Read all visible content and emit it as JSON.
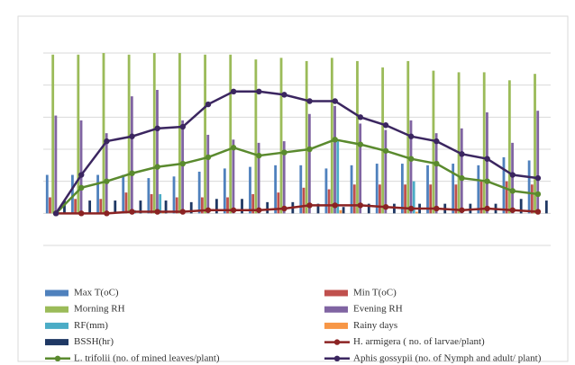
{
  "chart_data": {
    "type": "bar",
    "categories": [
      null,
      null,
      null,
      null,
      null,
      null,
      null,
      null,
      null,
      null,
      null,
      null,
      null,
      null,
      null,
      null,
      null,
      null,
      null,
      null
    ],
    "ylim": [
      -20,
      100
    ],
    "yticks": [
      -20,
      0,
      20,
      40,
      60,
      80,
      100
    ],
    "grid": true,
    "series": [
      {
        "name": "Max T(oC)",
        "color": "#4f81bd",
        "type": "bar",
        "values": [
          24,
          24,
          24,
          24,
          22,
          23,
          26,
          28,
          29,
          30,
          30,
          28,
          30,
          31,
          31,
          30,
          31,
          30,
          35,
          33
        ]
      },
      {
        "name": "Min T(oC)",
        "color": "#c0504d",
        "type": "bar",
        "values": [
          10,
          9,
          9,
          13,
          12,
          10,
          10,
          10,
          12,
          13,
          16,
          15,
          18,
          18,
          18,
          18,
          18,
          20,
          20,
          18
        ]
      },
      {
        "name": "Morning RH",
        "color": "#9bbb59",
        "type": "bar",
        "values": [
          99,
          99,
          100,
          99,
          100,
          100,
          99,
          99,
          96,
          97,
          95,
          97,
          95,
          91,
          95,
          89,
          88,
          88,
          83,
          87
        ]
      },
      {
        "name": "Evening RH",
        "color": "#8064a2",
        "type": "bar",
        "values": [
          61,
          58,
          50,
          73,
          77,
          58,
          49,
          46,
          44,
          45,
          62,
          67,
          56,
          52,
          58,
          50,
          53,
          63,
          44,
          64
        ]
      },
      {
        "name": "RF(mm)",
        "color": "#4bacc6",
        "type": "bar",
        "values": [
          0,
          0,
          0,
          2,
          12,
          0,
          0,
          0,
          0,
          0,
          0,
          45,
          0,
          0,
          20,
          0,
          0,
          0,
          0,
          0
        ]
      },
      {
        "name": "Rainy days",
        "color": "#f79646",
        "type": "bar",
        "values": [
          0,
          0,
          0,
          0,
          1,
          0,
          0,
          0,
          0,
          0,
          0,
          2,
          0,
          0,
          1,
          0,
          0,
          0,
          0,
          0
        ]
      },
      {
        "name": "BSSH(hr)",
        "color": "#1f3864",
        "type": "bar",
        "values": [
          8,
          8,
          8,
          8,
          8,
          7,
          9,
          9,
          7,
          7,
          6,
          4,
          6,
          6,
          6,
          6,
          6,
          6,
          9,
          8
        ]
      },
      {
        "name": "H. armigera ( no. of larvae/plant)",
        "color": "#8b2323",
        "type": "line",
        "values": [
          0,
          0,
          0,
          1,
          1,
          1,
          2,
          2,
          2,
          3,
          5,
          5,
          5,
          4,
          3,
          3,
          2,
          3,
          2,
          1
        ]
      },
      {
        "name": "L. trifolii (no. of mined leaves/plant)",
        "color": "#5a8a2e",
        "type": "line",
        "values": [
          0,
          16,
          20,
          25,
          29,
          31,
          35,
          41,
          36,
          38,
          40,
          46,
          43,
          39,
          34,
          31,
          22,
          20,
          14,
          12
        ]
      },
      {
        "name": "Aphis gossypii (no. of Nymph and adult/ plant)",
        "color": "#3b2660",
        "type": "line",
        "values": [
          0,
          24,
          45,
          48,
          53,
          54,
          68,
          76,
          76,
          74,
          70,
          70,
          60,
          55,
          48,
          45,
          37,
          34,
          24,
          22
        ]
      }
    ]
  }
}
